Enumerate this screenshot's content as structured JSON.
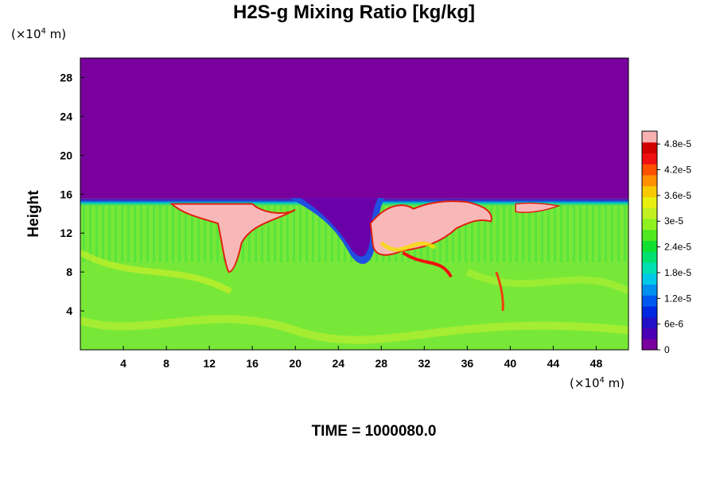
{
  "chart_data": {
    "type": "heatmap",
    "title": "H2S-g Mixing Ratio [kg/kg]",
    "ylabel": "Height",
    "y_unit": "(×10",
    "y_unit_exp": "4",
    "y_unit_tail": " m)",
    "x_unit": "(×10",
    "x_unit_exp": "4",
    "x_unit_tail": " m)",
    "xlim": [
      0,
      51
    ],
    "ylim": [
      0,
      30
    ],
    "x_ticks": [
      "4",
      "8",
      "12",
      "16",
      "20",
      "24",
      "28",
      "32",
      "36",
      "40",
      "44",
      "48"
    ],
    "y_ticks": [
      "4",
      "8",
      "12",
      "16",
      "20",
      "24",
      "28"
    ],
    "colorbar": {
      "range": [
        0,
        5.1e-05
      ],
      "tick_labels": [
        "0",
        "6e-6",
        "1.2e-5",
        "1.8e-5",
        "2.4e-5",
        "3e-5",
        "3.6e-5",
        "4.2e-5",
        "4.8e-5"
      ],
      "colors": [
        "#7a009e",
        "#4a00b4",
        "#2010c8",
        "#0028e0",
        "#0058f0",
        "#0090f0",
        "#00c8e8",
        "#00e0b0",
        "#00e070",
        "#10e030",
        "#50e820",
        "#90f020",
        "#c0f020",
        "#e8f010",
        "#f8c800",
        "#ff9000",
        "#ff5000",
        "#f01010",
        "#d00000",
        "#f8b0b0"
      ]
    },
    "field_description": "near-zero above ~15.5 (x10^4 m); ~3e-5 below; plumes >4.8e-5 near x 8-16 and x 27-38",
    "time_label": "TIME = 1000080.0"
  }
}
